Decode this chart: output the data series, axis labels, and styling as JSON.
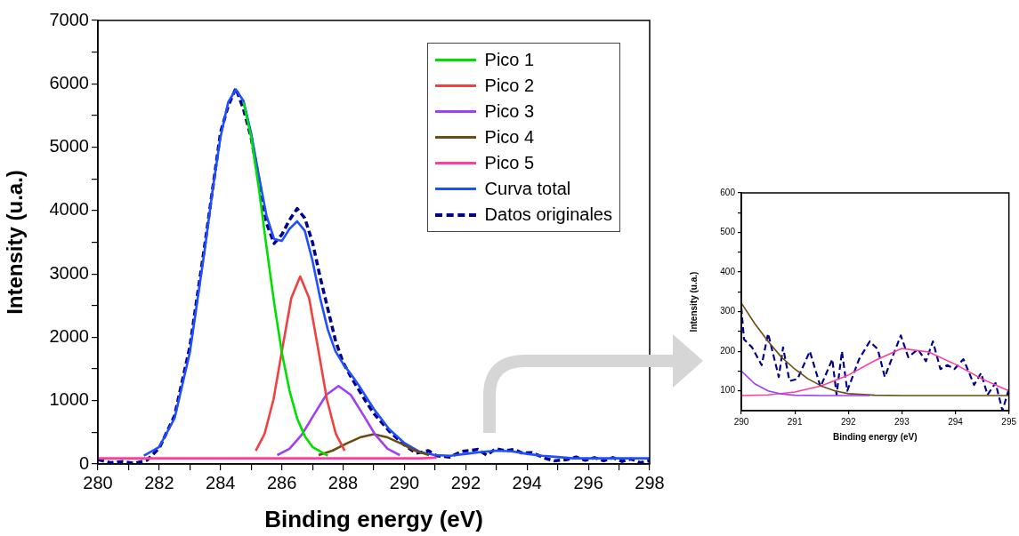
{
  "chart_data": [
    {
      "type": "line",
      "xlabel": "Binding energy (eV)",
      "ylabel": "Intensity (u.a.)",
      "xlim": [
        280,
        298
      ],
      "ylim": [
        0,
        7000
      ],
      "xticks": [
        280,
        {
          "value": 281,
          "label": null
        },
        282,
        {
          "value": 283,
          "label": null
        },
        284,
        {
          "value": 285,
          "label": null
        },
        286,
        {
          "value": 287,
          "label": null
        },
        288,
        {
          "value": 289,
          "label": null
        },
        290,
        {
          "value": 291,
          "label": null
        },
        292,
        {
          "value": 293,
          "label": null
        },
        294,
        {
          "value": 295,
          "label": null
        },
        296,
        {
          "value": 297,
          "label": null
        },
        298
      ],
      "yticks": [
        0,
        {
          "value": 500,
          "label": null
        },
        1000,
        {
          "value": 1500,
          "label": null
        },
        2000,
        {
          "value": 2500,
          "label": null
        },
        3000,
        {
          "value": 3500,
          "label": null
        },
        4000,
        {
          "value": 4500,
          "label": null
        },
        5000,
        {
          "value": 5500,
          "label": null
        },
        6000,
        {
          "value": 6500,
          "label": null
        },
        7000
      ],
      "legend": "top right",
      "marker": "none",
      "line_style": "solid",
      "series": [
        {
          "name": "Pico 1",
          "color": "#00e000",
          "x": [
            284.75,
            285,
            285.25,
            285.5,
            285.75,
            286,
            286.25,
            286.5,
            286.75,
            287,
            287.5
          ],
          "values": [
            5710,
            5160,
            4350,
            3430,
            2540,
            1760,
            1160,
            720,
            440,
            270,
            130
          ]
        },
        {
          "name": "Pico 2",
          "color": "#f04040",
          "x": [
            285.15,
            285.44,
            285.73,
            286.02,
            286.31,
            286.6,
            286.89,
            287.18,
            287.47,
            287.76,
            288.05
          ],
          "values": [
            210,
            480,
            1020,
            1830,
            2620,
            2960,
            2620,
            1830,
            1020,
            480,
            210
          ]
        },
        {
          "name": "Pico 3",
          "color": "#a040f0",
          "x": [
            285.85,
            286.25,
            286.65,
            287.05,
            287.45,
            287.85,
            288.25,
            288.65,
            289.05,
            289.45,
            289.85
          ],
          "values": [
            140,
            240,
            460,
            780,
            1090,
            1230,
            1090,
            780,
            460,
            240,
            140
          ]
        },
        {
          "name": "Pico 4",
          "color": "#6b4c12",
          "x": [
            287.2,
            287.65,
            288.1,
            288.55,
            289,
            289.45,
            289.9,
            290.35,
            290.8
          ],
          "values": [
            140,
            210,
            320,
            420,
            470,
            420,
            320,
            210,
            140
          ]
        },
        {
          "name": "Pico 5",
          "color": "#ff3ca0",
          "x": [
            280,
            289.55,
            290.05,
            290.55,
            291.05
          ],
          "values": [
            90,
            90,
            90,
            90,
            100
          ]
        },
        {
          "name": "Curva total",
          "color": "#1f4fff",
          "x": [
            281.5,
            282,
            282.5,
            283,
            283.5,
            283.75,
            284,
            284.25,
            284.5,
            284.75,
            285,
            285.25,
            285.5,
            285.75,
            286,
            286.25,
            286.5,
            286.75,
            287,
            287.25,
            287.5,
            287.75,
            288,
            288.25,
            288.5,
            288.75,
            289,
            289.5,
            290,
            290.5,
            291,
            291.5,
            292,
            292.5,
            293,
            293.5,
            294,
            294.5,
            295,
            295.5,
            296,
            298
          ],
          "values": [
            130,
            270,
            720,
            1760,
            3430,
            4350,
            5160,
            5710,
            5910,
            5730,
            5220,
            4550,
            3920,
            3550,
            3520,
            3710,
            3830,
            3680,
            3210,
            2620,
            2120,
            1780,
            1580,
            1420,
            1250,
            1060,
            870,
            550,
            330,
            190,
            140,
            130,
            160,
            190,
            210,
            200,
            160,
            130,
            110,
            90,
            90,
            90
          ]
        },
        {
          "name": "Datos originales",
          "color": "#00008b",
          "line_style": "dashed",
          "x": [
            280,
            280.4,
            280.8,
            281.2,
            281.6,
            282,
            282.5,
            283,
            283.5,
            284,
            284.25,
            284.5,
            284.75,
            285,
            285.25,
            285.5,
            285.75,
            286,
            286.25,
            286.5,
            286.75,
            287,
            287.25,
            287.5,
            287.75,
            288,
            288.25,
            288.5,
            288.75,
            289,
            289.5,
            290,
            290.38,
            290.78,
            291.05,
            291.48,
            291.88,
            292.4,
            292.68,
            292.98,
            293.3,
            293.58,
            293.85,
            294.15,
            294.6,
            294.88,
            295.3,
            295.6,
            295.9,
            296.2,
            296.5,
            296.8,
            297.1,
            297.4,
            297.7,
            298
          ],
          "values": [
            70,
            20,
            40,
            10,
            60,
            250,
            760,
            1850,
            3500,
            5230,
            5650,
            5930,
            5600,
            5150,
            4500,
            3800,
            3480,
            3620,
            3850,
            4030,
            3880,
            3500,
            2950,
            2450,
            1950,
            1600,
            1380,
            1180,
            980,
            800,
            520,
            300,
            170,
            210,
            130,
            110,
            200,
            230,
            140,
            240,
            210,
            230,
            170,
            180,
            90,
            50,
            70,
            110,
            60,
            100,
            50,
            100,
            40,
            80,
            20,
            50
          ]
        }
      ]
    },
    {
      "type": "line",
      "xlabel": "Binding energy (eV)",
      "ylabel": "Intensity (u.a.)",
      "xlim": [
        290,
        295
      ],
      "ylim": [
        50,
        600
      ],
      "xticks": [
        290,
        291,
        292,
        293,
        294,
        295
      ],
      "yticks": [
        100,
        {
          "value": 150,
          "label": null
        },
        200,
        {
          "value": 250,
          "label": null
        },
        300,
        {
          "value": 350,
          "label": null
        },
        400,
        {
          "value": 450,
          "label": null
        },
        500,
        {
          "value": 550,
          "label": null
        },
        600
      ],
      "marker": "none",
      "line_style": "solid",
      "series": [
        {
          "color": "#a040f0",
          "x": [
            290,
            290.25,
            290.5,
            290.75,
            291,
            291.5,
            292.4
          ],
          "values": [
            150,
            118,
            100,
            92,
            89,
            88,
            88
          ]
        },
        {
          "color": "#6b4c12",
          "x": [
            290,
            290.25,
            290.5,
            290.75,
            291,
            291.25,
            291.5,
            291.75,
            292,
            292.5,
            293,
            295
          ],
          "values": [
            322,
            270,
            225,
            185,
            155,
            130,
            112,
            100,
            93,
            89,
            88,
            88
          ]
        },
        {
          "color": "#ff3ca0",
          "x": [
            290,
            290.5,
            291,
            291.5,
            292,
            292.5,
            293,
            293.5,
            294,
            294.5,
            295
          ],
          "values": [
            88,
            90,
            97,
            113,
            140,
            177,
            207,
            198,
            167,
            130,
            100
          ]
        },
        {
          "color": "#00008b",
          "line_style": "dashed",
          "x": [
            290,
            290.05,
            290.2,
            290.38,
            290.5,
            290.7,
            290.78,
            290.9,
            291.05,
            291.28,
            291.48,
            291.7,
            291.78,
            291.88,
            291.98,
            292.2,
            292.4,
            292.55,
            292.68,
            292.98,
            293.12,
            293.3,
            293.45,
            293.58,
            293.72,
            293.85,
            293.98,
            294.15,
            294.35,
            294.48,
            294.6,
            294.75,
            294.88,
            295
          ],
          "values": [
            310,
            230,
            210,
            165,
            245,
            135,
            210,
            125,
            130,
            200,
            110,
            180,
            90,
            200,
            100,
            180,
            225,
            205,
            135,
            240,
            185,
            205,
            175,
            225,
            155,
            165,
            155,
            180,
            115,
            145,
            90,
            120,
            50,
            105
          ]
        }
      ]
    }
  ]
}
